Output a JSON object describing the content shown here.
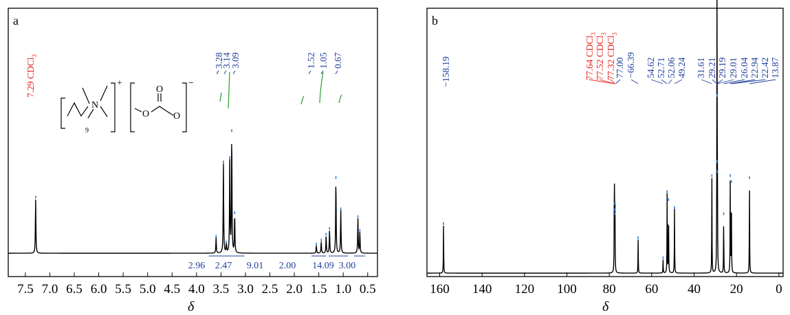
{
  "colors": {
    "frame": "#000000",
    "spectrum": "#000000",
    "solvent_label": "#e8201c",
    "peak_label": "#1f3f9a",
    "integral": "#2a9a2a",
    "peak_marker": "#2f7fd8"
  },
  "chart_data": [
    {
      "panel": "a",
      "type": "line",
      "xlabel": "δ",
      "xlim": [
        7.85,
        0.3
      ],
      "x_ticks": [
        "7.5",
        "7.0",
        "6.5",
        "6.0",
        "5.5",
        "5.0",
        "4.5",
        "4.0",
        "3.5",
        "3.0",
        "2.5",
        "2.0",
        "1.5",
        "1.0",
        "0.5"
      ],
      "x_tick_values": [
        7.5,
        7.0,
        6.5,
        6.0,
        5.5,
        5.0,
        4.5,
        4.0,
        3.5,
        3.0,
        2.5,
        2.0,
        1.5,
        1.0,
        0.5
      ],
      "solvent_label": "7.29 CDCl",
      "solvent_label_sub": "3",
      "peak_labels": [
        "3.28",
        "3.14",
        "3.09",
        "1.52",
        "1.05",
        "0.67"
      ],
      "integrals": [
        "2.96",
        "2.47",
        "9.01",
        "2.00",
        "14.09",
        "3.00"
      ],
      "structure_labels": {
        "nitrogen": "N",
        "plus": "+",
        "repeat": "9",
        "oxygen": "O",
        "minus": "−"
      },
      "peaks": [
        {
          "x": 7.29,
          "h": 0.28
        },
        {
          "x": 3.6,
          "h": 0.08
        },
        {
          "x": 3.45,
          "h": 0.46
        },
        {
          "x": 3.39,
          "h": 0.05
        },
        {
          "x": 3.32,
          "h": 0.48
        },
        {
          "x": 3.28,
          "h": 0.62
        },
        {
          "x": 3.22,
          "h": 0.2
        },
        {
          "x": 1.55,
          "h": 0.04
        },
        {
          "x": 1.45,
          "h": 0.06
        },
        {
          "x": 1.35,
          "h": 0.09
        },
        {
          "x": 1.28,
          "h": 0.12
        },
        {
          "x": 1.15,
          "h": 0.38
        },
        {
          "x": 1.05,
          "h": 0.22
        },
        {
          "x": 0.7,
          "h": 0.18
        },
        {
          "x": 0.66,
          "h": 0.11
        }
      ]
    },
    {
      "panel": "b",
      "type": "line",
      "xlabel": "δ",
      "xlim": [
        166,
        -2
      ],
      "x_ticks": [
        "160",
        "140",
        "120",
        "100",
        "80",
        "60",
        "40",
        "20",
        "0"
      ],
      "x_tick_values": [
        160,
        140,
        120,
        100,
        80,
        60,
        40,
        20,
        0
      ],
      "solvent_labels": [
        "77.64 CDCl",
        "77.52 CDCl",
        "77.32 CDCl"
      ],
      "solvent_label_sub": "3",
      "peak_labels": [
        "158.19",
        "77.00",
        "66.39",
        "54.62",
        "52.71",
        "52.06",
        "49.24",
        "31.61",
        "29.21",
        "29.19",
        "29.01",
        "26.04",
        "22.94",
        "22.42",
        "13.87"
      ],
      "peaks": [
        {
          "x": 158.19,
          "h": 0.24
        },
        {
          "x": 77.64,
          "h": 0.34
        },
        {
          "x": 77.52,
          "h": 0.31
        },
        {
          "x": 77.32,
          "h": 0.29
        },
        {
          "x": 66.39,
          "h": 0.17
        },
        {
          "x": 54.62,
          "h": 0.07
        },
        {
          "x": 52.71,
          "h": 0.4
        },
        {
          "x": 52.06,
          "h": 0.36
        },
        {
          "x": 49.24,
          "h": 0.32
        },
        {
          "x": 31.61,
          "h": 0.48
        },
        {
          "x": 29.21,
          "h": 0.88
        },
        {
          "x": 29.19,
          "h": 0.55
        },
        {
          "x": 29.01,
          "h": 0.5
        },
        {
          "x": 26.04,
          "h": 0.29
        },
        {
          "x": 22.94,
          "h": 0.48
        },
        {
          "x": 22.42,
          "h": 0.45
        },
        {
          "x": 13.87,
          "h": 0.47
        }
      ]
    }
  ]
}
